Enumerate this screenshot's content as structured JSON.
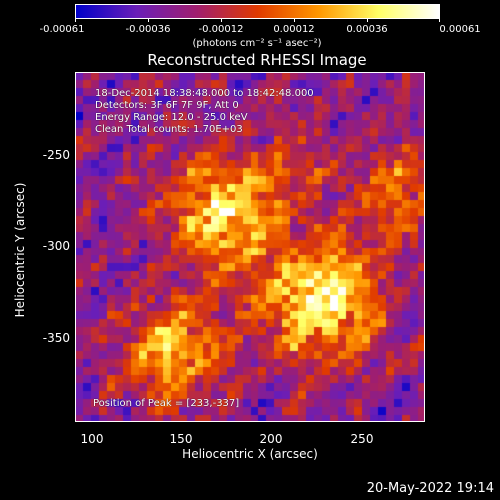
{
  "colorbar": {
    "labels": [
      "-0.00061",
      "-0.00036",
      "-0.00012",
      "0.00012",
      "0.00036",
      "0.00061"
    ],
    "unit": "(photons cm⁻² s⁻¹ asec⁻²)"
  },
  "title": "Reconstructed RHESSI Image",
  "annotations": {
    "line1": "18-Dec-2014 18:38:48.000 to 18:42:48.000",
    "line2": "Detectors: 3F 6F 7F 9F, Att 0",
    "line3": "Energy Range: 12.0 - 25.0 keV",
    "line4": "Clean     Total counts: 1.70E+03",
    "peak": "Position of Peak = [233,-337]"
  },
  "axes": {
    "xlabel": "Heliocentric X (arcsec)",
    "ylabel": "Heliocentric Y (arcsec)",
    "xticks": [
      "100",
      "150",
      "200",
      "250"
    ],
    "yticks": [
      "-250",
      "-300",
      "-350"
    ]
  },
  "timestamp": "20-May-2022 19:14",
  "colors": {
    "colorbar_stops": [
      "#0000c8",
      "#6a1eb8",
      "#a01e6e",
      "#e03a00",
      "#ff9600",
      "#ffff66",
      "#ffffff"
    ]
  }
}
